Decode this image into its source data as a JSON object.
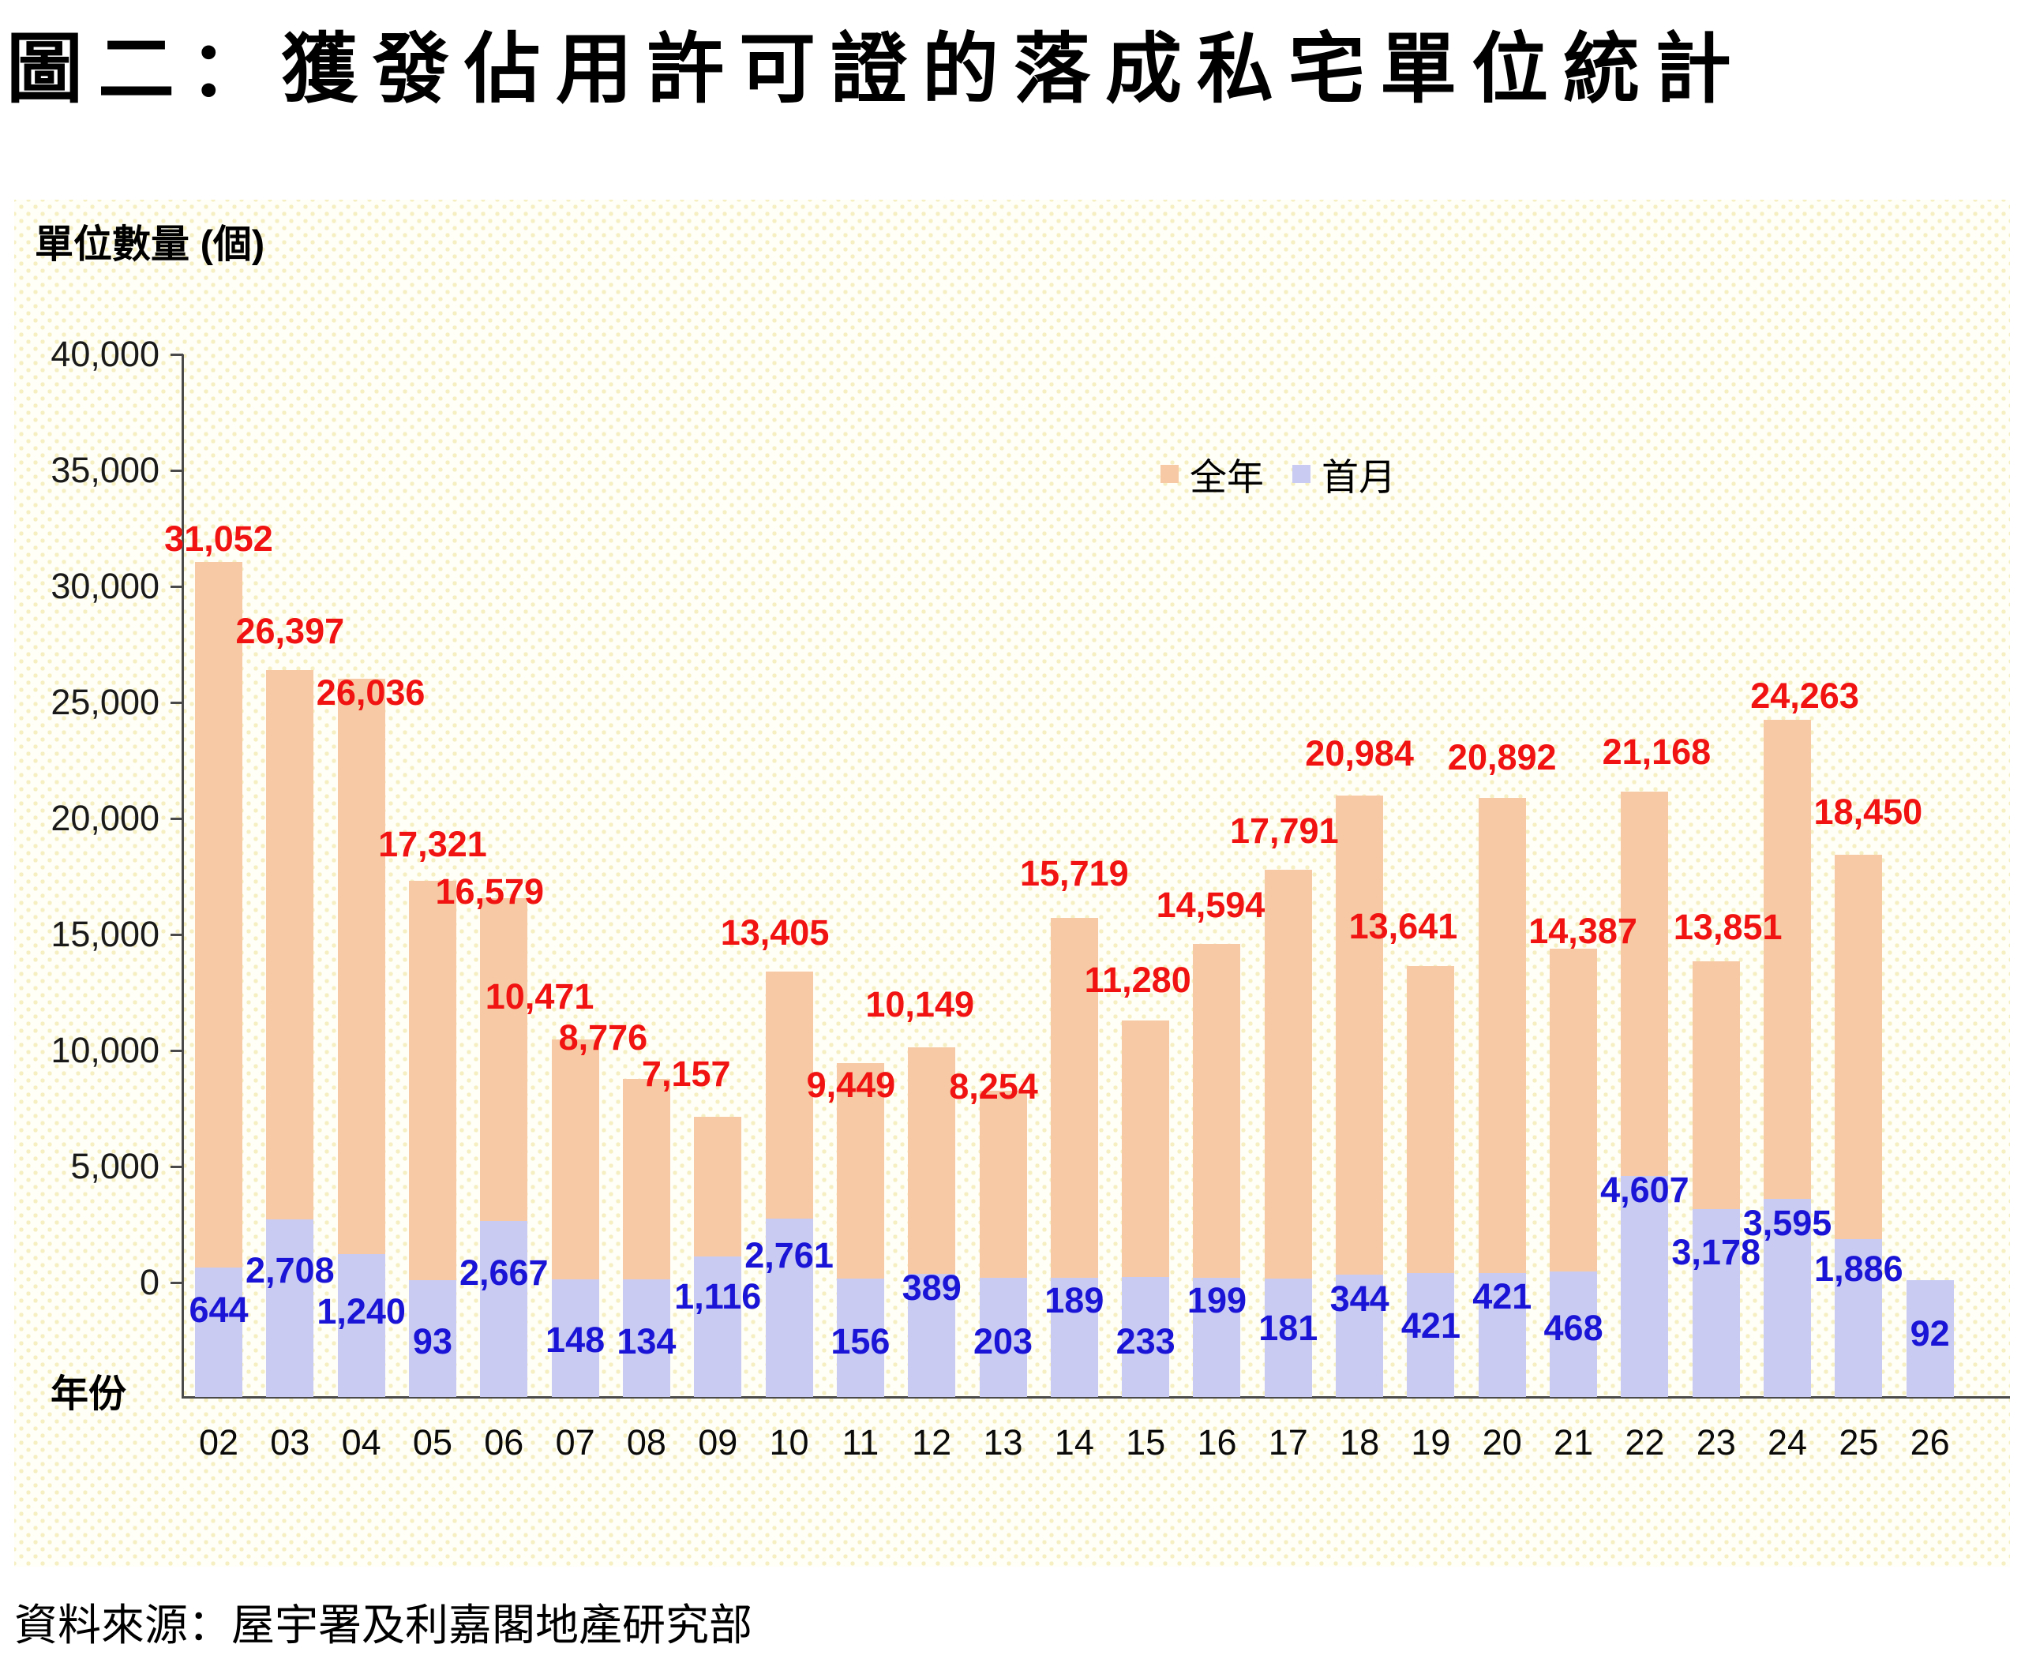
{
  "title": "圖二：獲發佔用許可證的落成私宅單位統計",
  "y_axis": {
    "title": "單位數量 (個)",
    "tick_labels": [
      "40,000",
      "35,000",
      "30,000",
      "25,000",
      "20,000",
      "15,000",
      "10,000",
      "5,000",
      "0"
    ]
  },
  "x_axis": {
    "title": "年份"
  },
  "legend": {
    "items": [
      {
        "label": "全年",
        "color": "#f7caa5"
      },
      {
        "label": "首月",
        "color": "#c9cbf3"
      }
    ]
  },
  "source": "資料來源：屋宇署及利嘉閣地產研究部",
  "colors": {
    "full_year_bar": "#f7caa5",
    "first_month_bar": "#c9cbf3",
    "full_year_label": "#f01311",
    "first_month_label": "#1a15d6",
    "axis": "#4a4a4a"
  },
  "chart_data": {
    "type": "bar",
    "title": "圖二：獲發佔用許可證的落成私宅單位統計",
    "categories": [
      "02",
      "03",
      "04",
      "05",
      "06",
      "07",
      "08",
      "09",
      "10",
      "11",
      "12",
      "13",
      "14",
      "15",
      "16",
      "17",
      "18",
      "19",
      "20",
      "21",
      "22",
      "23",
      "24",
      "25",
      "26"
    ],
    "series": [
      {
        "name": "全年",
        "color": "#f7caa5",
        "values": [
          31052,
          26397,
          26036,
          17321,
          16579,
          10471,
          8776,
          7157,
          13405,
          9449,
          10149,
          8254,
          15719,
          11280,
          14594,
          17791,
          20984,
          13641,
          20892,
          14387,
          21168,
          13851,
          24263,
          18450,
          null
        ]
      },
      {
        "name": "首月",
        "color": "#c9cbf3",
        "values": [
          644,
          2708,
          1240,
          93,
          2667,
          148,
          134,
          1116,
          2761,
          156,
          389,
          203,
          189,
          233,
          199,
          181,
          344,
          421,
          421,
          468,
          4607,
          3178,
          3595,
          1886,
          92
        ]
      }
    ],
    "ylabel": "單位數量 (個)",
    "xlabel": "年份",
    "ylim": [
      -5000,
      40000
    ],
    "ytick_step": 5000,
    "grid": false,
    "legend_position": "top-inside",
    "note": "首月 bars are drawn on the same value axis but rise from the plot bottom at -5,000; 全年 bars rise from 0. Year 26 has no 全年 value."
  }
}
